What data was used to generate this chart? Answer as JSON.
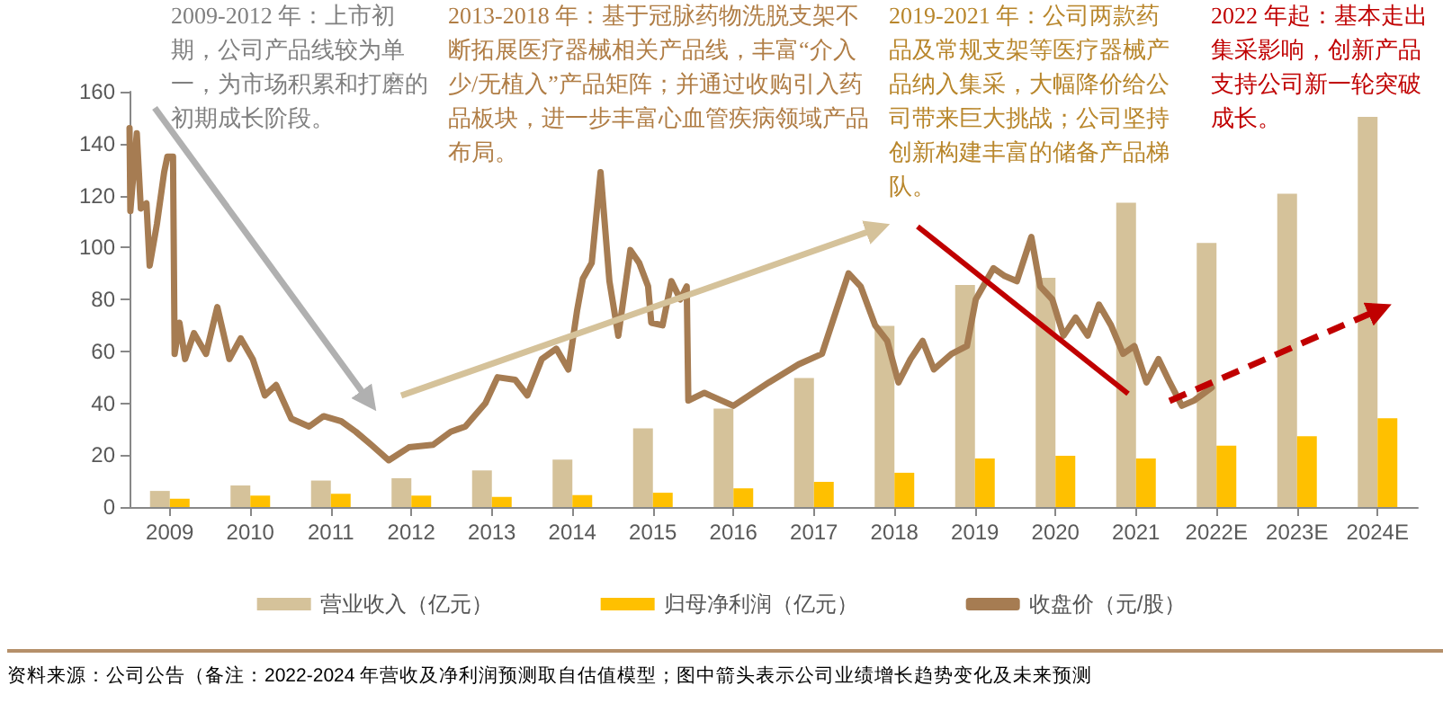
{
  "chart_data": {
    "type": "bar",
    "x": [
      2009.5,
      2010.5,
      2011.5,
      2012.5,
      2013.5,
      2014.5,
      2015.5,
      2016.5,
      2017.5,
      2018.5,
      2019.5,
      2020.5,
      2021.5,
      2022.5,
      2023.5,
      2024.5
    ],
    "xticks": [
      {
        "value": 2009.5,
        "label": "2009"
      },
      {
        "value": 2010.5,
        "label": "2010"
      },
      {
        "value": 2011.5,
        "label": "2011"
      },
      {
        "value": 2012.5,
        "label": "2012"
      },
      {
        "value": 2013.5,
        "label": "2013"
      },
      {
        "value": 2014.5,
        "label": "2014"
      },
      {
        "value": 2015.5,
        "label": "2015"
      },
      {
        "value": 2016.5,
        "label": "2016"
      },
      {
        "value": 2017.5,
        "label": "2017"
      },
      {
        "value": 2018.5,
        "label": "2018"
      },
      {
        "value": 2019.5,
        "label": "2019"
      },
      {
        "value": 2020.5,
        "label": "2020"
      },
      {
        "value": 2021.5,
        "label": "2021"
      },
      {
        "value": 2022.5,
        "label": "2022E"
      },
      {
        "value": 2023.5,
        "label": "2023E"
      },
      {
        "value": 2024.5,
        "label": "2024E"
      }
    ],
    "ylim": [
      0,
      160
    ],
    "yticks": [
      0,
      20,
      40,
      60,
      80,
      100,
      120,
      140,
      160
    ],
    "xlim": [
      2009,
      2025
    ],
    "grid": false,
    "legend": "bottom",
    "series": [
      {
        "name": "营业收入（亿元）",
        "color": "#d5c29a",
        "values": [
          6.2,
          8.3,
          10.2,
          11.1,
          14.1,
          18.3,
          30.3,
          37.9,
          49.7,
          69.8,
          85.5,
          88.3,
          117.2,
          101.7,
          120.7,
          150.3
        ]
      },
      {
        "name": "归母净利润（亿元）",
        "color": "#ffc000",
        "values": [
          3.2,
          4.4,
          5.1,
          4.4,
          3.9,
          4.6,
          5.5,
          7.2,
          9.7,
          13.2,
          18.7,
          19.7,
          18.7,
          23.6,
          27.3,
          34.2
        ]
      },
      {
        "name": "收盘价（元/股）",
        "type": "line",
        "color": "#a67c52",
        "marker": "none",
        "line_style": "solid",
        "x": [
          2009.0,
          2009.01,
          2009.09,
          2009.14,
          2009.21,
          2009.25,
          2009.34,
          2009.43,
          2009.47,
          2009.54,
          2009.56,
          2009.62,
          2009.69,
          2009.8,
          2009.95,
          2010.09,
          2010.24,
          2010.38,
          2010.53,
          2010.68,
          2010.82,
          2011.01,
          2011.23,
          2011.41,
          2011.63,
          2011.81,
          2012.0,
          2012.22,
          2012.47,
          2012.77,
          2012.99,
          2013.17,
          2013.28,
          2013.42,
          2013.57,
          2013.79,
          2013.94,
          2014.12,
          2014.3,
          2014.45,
          2014.56,
          2014.63,
          2014.74,
          2014.85,
          2014.9,
          2014.96,
          2015.07,
          2015.22,
          2015.33,
          2015.44,
          2015.48,
          2015.62,
          2015.73,
          2015.84,
          2015.92,
          2015.94,
          2016.14,
          2016.21,
          2016.5,
          2016.94,
          2017.31,
          2017.6,
          2017.78,
          2017.93,
          2018.08,
          2018.26,
          2018.41,
          2018.55,
          2018.7,
          2018.85,
          2018.99,
          2019.21,
          2019.4,
          2019.51,
          2019.73,
          2019.87,
          2020.02,
          2020.2,
          2020.31,
          2020.46,
          2020.6,
          2020.75,
          2020.9,
          2021.04,
          2021.19,
          2021.34,
          2021.48,
          2021.63,
          2021.78,
          2021.92,
          2022.07,
          2022.22,
          2022.44
        ],
        "values": [
          146,
          114,
          144,
          115,
          117,
          93,
          109,
          129,
          135,
          135,
          59,
          71,
          57,
          67,
          59,
          77,
          57,
          65,
          57,
          43,
          47,
          34,
          31,
          35,
          33,
          29,
          24,
          18,
          23,
          24,
          29,
          31,
          35,
          40,
          50,
          49,
          43,
          57,
          61,
          53,
          76,
          88,
          94,
          129,
          110,
          87,
          66,
          99,
          94,
          85,
          71,
          70,
          87,
          80,
          85,
          41,
          44,
          43,
          39,
          48,
          55,
          59,
          76,
          90,
          85,
          70,
          64,
          48,
          57,
          64,
          53,
          59,
          62,
          80,
          92,
          89,
          87,
          104,
          85,
          80,
          66,
          73,
          66,
          78,
          70,
          59,
          62,
          48,
          57,
          48,
          39,
          41,
          46
        ]
      }
    ],
    "annotations": [
      "2009-2012 年：上市初期，公司产品线较为单一，为市场积累和打磨的初期成长阶段。",
      "2013-2018 年：基于冠脉药物洗脱支架不断拓展医疗器械相关产品线，丰富“介入少/无植入”产品矩阵；并通过收购引入药品板块，进一步丰富心血管疾病领域产品布局。",
      "2019-2021 年：公司两款药品及常规支架等医疗器械产品纳入集采，大幅降价给公司带来巨大挑战；公司坚持创新构建丰富的储备产品梯队。",
      "2022 年起：基本走出集采影响，创新产品支持公司新一轮突破成长。",
      "资料来源：公司公告（备注：2022-2024 年营收及净利润预测取自估值模型；图中箭头表示公司业绩增长趋势变化及未来预测"
    ]
  }
}
